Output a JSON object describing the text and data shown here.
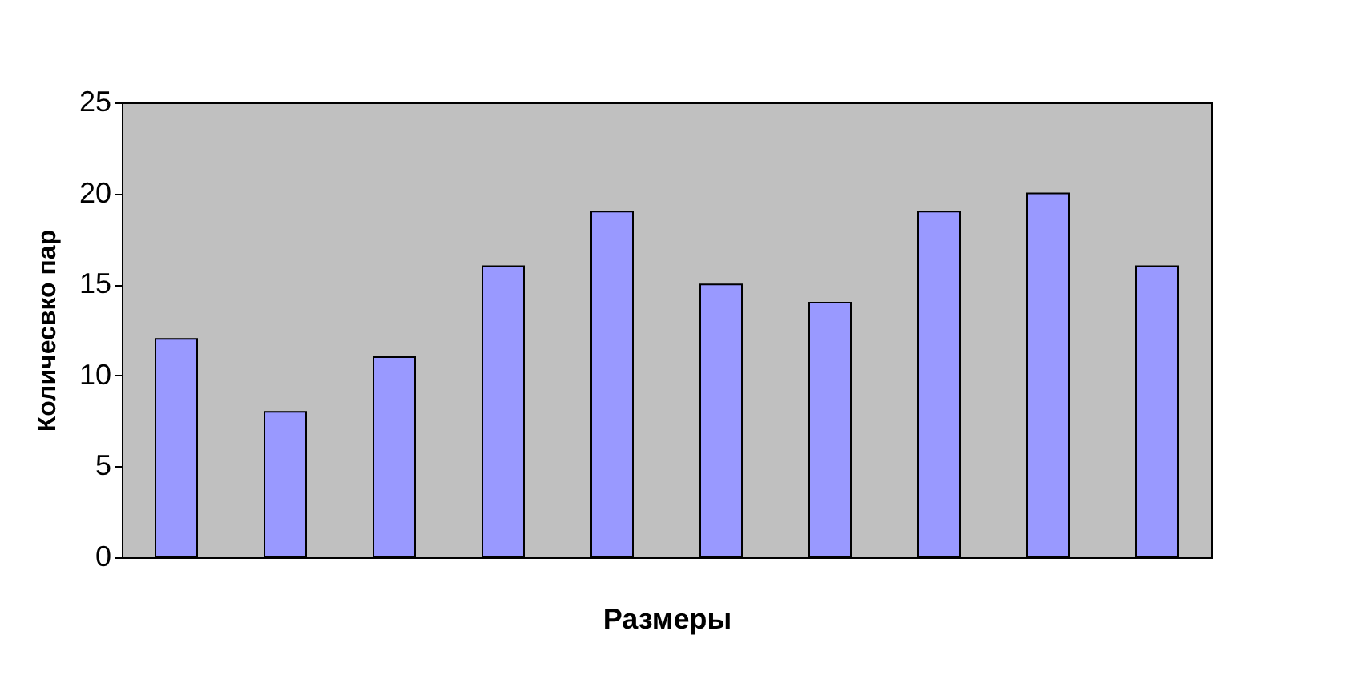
{
  "chart_data": {
    "type": "bar",
    "xlabel": "Размеры",
    "ylabel": "Количесвко пар",
    "categories": [
      null,
      null,
      null,
      null,
      null,
      null,
      null,
      null,
      null,
      null
    ],
    "series": [
      {
        "color": "#9999ff",
        "values": [
          12,
          8,
          11,
          16,
          19,
          15,
          14,
          19,
          20,
          16
        ]
      }
    ],
    "ylim": [
      0,
      25
    ],
    "yticks": [
      0,
      5,
      10,
      15,
      20,
      25
    ],
    "grid": false,
    "legend": false,
    "tick_labels": "y"
  }
}
